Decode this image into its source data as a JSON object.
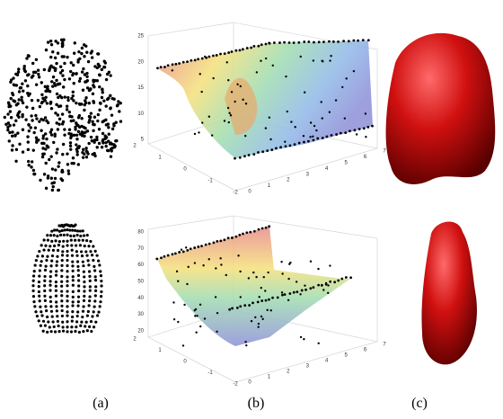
{
  "captions": [
    "(a)",
    "(b)",
    "(c)"
  ],
  "plots": [
    {
      "zticks": [
        5,
        10,
        15,
        20,
        25
      ],
      "yticks": [
        2,
        1,
        0,
        -1,
        -2
      ],
      "xticks": [
        0,
        1,
        2,
        3,
        4,
        5,
        6,
        7
      ]
    },
    {
      "zticks": [
        20,
        30,
        40,
        50,
        60,
        70,
        80
      ],
      "yticks": [
        2,
        1,
        0,
        -1,
        -2
      ],
      "xticks": [
        0,
        1,
        2,
        3,
        4,
        5,
        6,
        7
      ]
    }
  ]
}
